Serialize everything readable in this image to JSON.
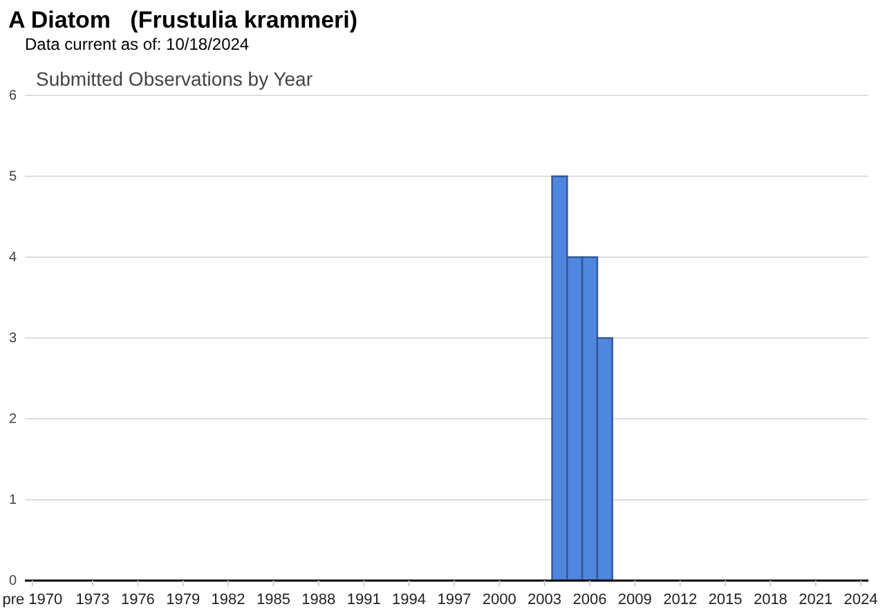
{
  "chart_data": {
    "type": "bar",
    "title": "A Diatom   (Frustulia krammeri)",
    "subtitle": "Data current as of: 10/18/2024",
    "annotations": [
      "Submitted Observations by Year"
    ],
    "categories": [
      "pre 1970",
      null,
      null,
      null,
      "1973",
      null,
      null,
      "1976",
      null,
      null,
      "1979",
      null,
      null,
      "1982",
      null,
      null,
      "1985",
      null,
      null,
      "1988",
      null,
      null,
      "1991",
      null,
      null,
      "1994",
      null,
      null,
      "1997",
      null,
      null,
      "2000",
      null,
      null,
      "2003",
      null,
      null,
      "2006",
      null,
      null,
      "2009",
      null,
      null,
      "2012",
      null,
      null,
      "2015",
      null,
      null,
      "2018",
      null,
      null,
      "2021",
      null,
      null,
      "2024"
    ],
    "values": [
      0,
      0,
      0,
      0,
      0,
      0,
      0,
      0,
      0,
      0,
      0,
      0,
      0,
      0,
      0,
      0,
      0,
      0,
      0,
      0,
      0,
      0,
      0,
      0,
      0,
      0,
      0,
      0,
      0,
      0,
      0,
      0,
      0,
      0,
      0,
      5,
      4,
      4,
      3,
      0,
      0,
      0,
      0,
      0,
      0,
      0,
      0,
      0,
      0,
      0,
      0,
      0,
      0,
      0,
      0,
      0
    ],
    "color": "#4f86e0",
    "ylim": [
      0,
      6
    ],
    "yticks": [
      0,
      1,
      2,
      3,
      4,
      5,
      6
    ],
    "grid": "y"
  }
}
